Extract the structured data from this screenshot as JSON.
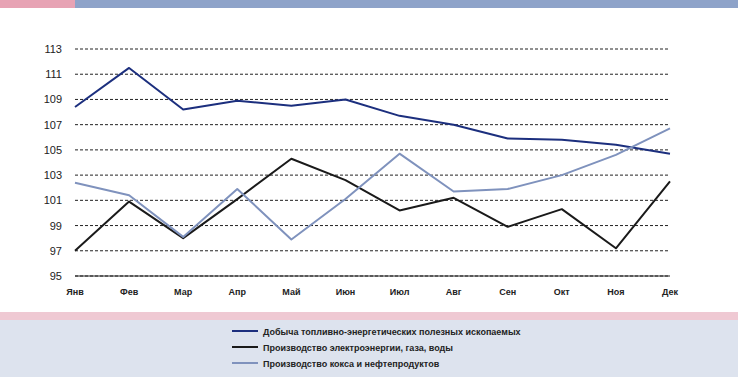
{
  "chart_data": {
    "type": "line",
    "categories": [
      "Янв",
      "Фев",
      "Мар",
      "Апр",
      "Май",
      "Июн",
      "Июл",
      "Авг",
      "Сен",
      "Окт",
      "Ноя",
      "Дек"
    ],
    "series": [
      {
        "name": "Добыча топливно-энергетических полезных ископаемых",
        "color": "#1c2f7e",
        "values": [
          108.4,
          111.5,
          108.2,
          108.9,
          108.5,
          109.0,
          107.7,
          107.0,
          105.9,
          105.8,
          105.4,
          104.7
        ]
      },
      {
        "name": "Производство электроэнергии, газа, воды",
        "color": "#1a1a1a",
        "values": [
          97.0,
          100.9,
          98.0,
          101.1,
          104.3,
          102.6,
          100.2,
          101.2,
          98.9,
          100.3,
          97.2,
          102.5
        ]
      },
      {
        "name": "Производство кокса и нефтепродуктов",
        "color": "#7f92bd",
        "values": [
          102.4,
          101.4,
          98.1,
          101.9,
          97.9,
          101.1,
          104.7,
          101.7,
          101.9,
          103.0,
          104.6,
          106.7
        ]
      }
    ],
    "ylim": [
      95,
      113
    ],
    "yticks": [
      95,
      97,
      99,
      101,
      103,
      105,
      107,
      109,
      111,
      113
    ],
    "grid": true,
    "legend": "bottom"
  }
}
